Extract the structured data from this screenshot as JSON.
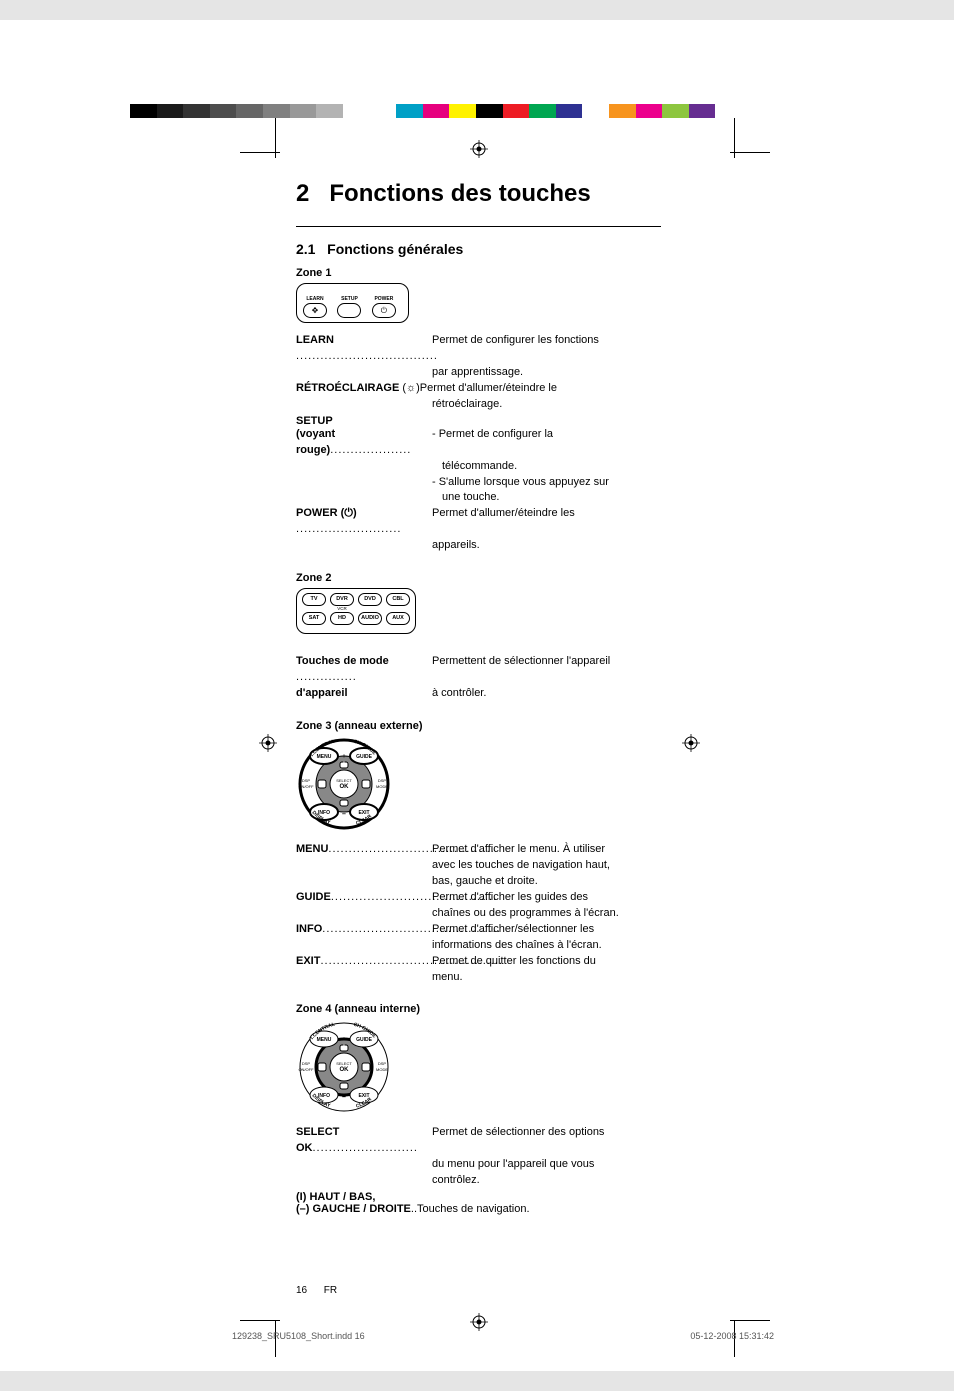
{
  "color_bar": [
    "#000000",
    "#1a1a1a",
    "#333333",
    "#4d4d4d",
    "#666666",
    "#808080",
    "#999999",
    "#b3b3b3",
    "#ffffff",
    "#ffffff",
    "#00a0c6",
    "#e6007e",
    "#fff200",
    "#000000",
    "#ed1c24",
    "#00a651",
    "#2e3192",
    "#ffffff",
    "#f7941e",
    "#ec008c",
    "#8dc63f",
    "#662d91",
    "#ffffff"
  ],
  "chapter_num": "2",
  "chapter_title": "Fonctions des touches",
  "section_num": "2.1",
  "section_title": "Fonctions générales",
  "zone1": {
    "label": "Zone 1",
    "btn_labels": [
      "LEARN",
      "SETUP",
      "POWER"
    ],
    "learn": {
      "term": "LEARN",
      "desc": "Permet de configurer les fonctions",
      "cont": "par apprentissage."
    },
    "retro": {
      "term": "RÉTROÉCLAIRAGE",
      "suffix": "(",
      "suffix2": ")Permet d'allumer/éteindre le",
      "cont": "rétroéclairage."
    },
    "setup_head": "SETUP",
    "voyant": {
      "term": "(voyant rouge)",
      "desc": "- Permet de configurer la",
      "c1": "télécommande.",
      "c2": "- S'allume lorsque vous appuyez sur",
      "c3": "une touche."
    },
    "power": {
      "term": "POWER (",
      "term2": ")",
      "desc": "Permet d'allumer/éteindre les",
      "cont": "appareils."
    }
  },
  "zone2": {
    "label": "Zone 2",
    "row1": [
      "TV",
      "DVR",
      "DVD",
      "CBL"
    ],
    "sub1": "VCR",
    "row2": [
      "SAT",
      "HD",
      "AUDIO",
      "AUX"
    ],
    "mode": {
      "term": "Touches de mode",
      "desc": "Permettent de sélectionner l'appareil"
    },
    "app": {
      "term": "d'appareil",
      "desc": "à contrôler."
    }
  },
  "zone3": {
    "label": "Zone 3 (anneau externe)",
    "ring_labels": {
      "tl_top": "T.CENTRAL",
      "tl": "MENU",
      "tr_top": "CH GUIDE",
      "tr": "GUIDE",
      "left_top": "DSP",
      "left": "ON/OFF",
      "center_top": "SELECT",
      "center": "OK",
      "right_top": "DSP",
      "right": "MODE",
      "bl": "INFO",
      "bl_bot": "DISPLAY",
      "br": "EXIT",
      "br_bot": "CLEAR"
    },
    "menu": {
      "term": "MENU",
      "desc": "Permet d'afficher le menu. À utiliser",
      "c1": "avec les touches de navigation haut,",
      "c2": "bas, gauche et droite."
    },
    "guide": {
      "term": "GUIDE",
      "desc": "Permet d'afficher les guides des",
      "c1": "chaînes ou des programmes à l'écran."
    },
    "info": {
      "term": "INFO",
      "desc": "Permet d'afficher/sélectionner les",
      "c1": "informations des chaînes à l'écran."
    },
    "exit": {
      "term": "EXIT",
      "desc": "Permet de quitter les fonctions du",
      "c1": "menu."
    }
  },
  "zone4": {
    "label": "Zone 4 (anneau interne)",
    "select": {
      "term": "SELECT OK",
      "desc": "Permet de sélectionner des options",
      "c1": "du menu pour l'appareil que vous",
      "c2": "contrôlez."
    },
    "haut": "(I) HAUT / BAS,",
    "gauche": {
      "term": "(–) GAUCHE / DROITE",
      "desc": "..Touches de navigation."
    }
  },
  "footer": {
    "page": "16",
    "lang": "FR",
    "file": "129238_SRU5108_Short.indd   16",
    "stamp": "05-12-2008   15:31:42"
  }
}
